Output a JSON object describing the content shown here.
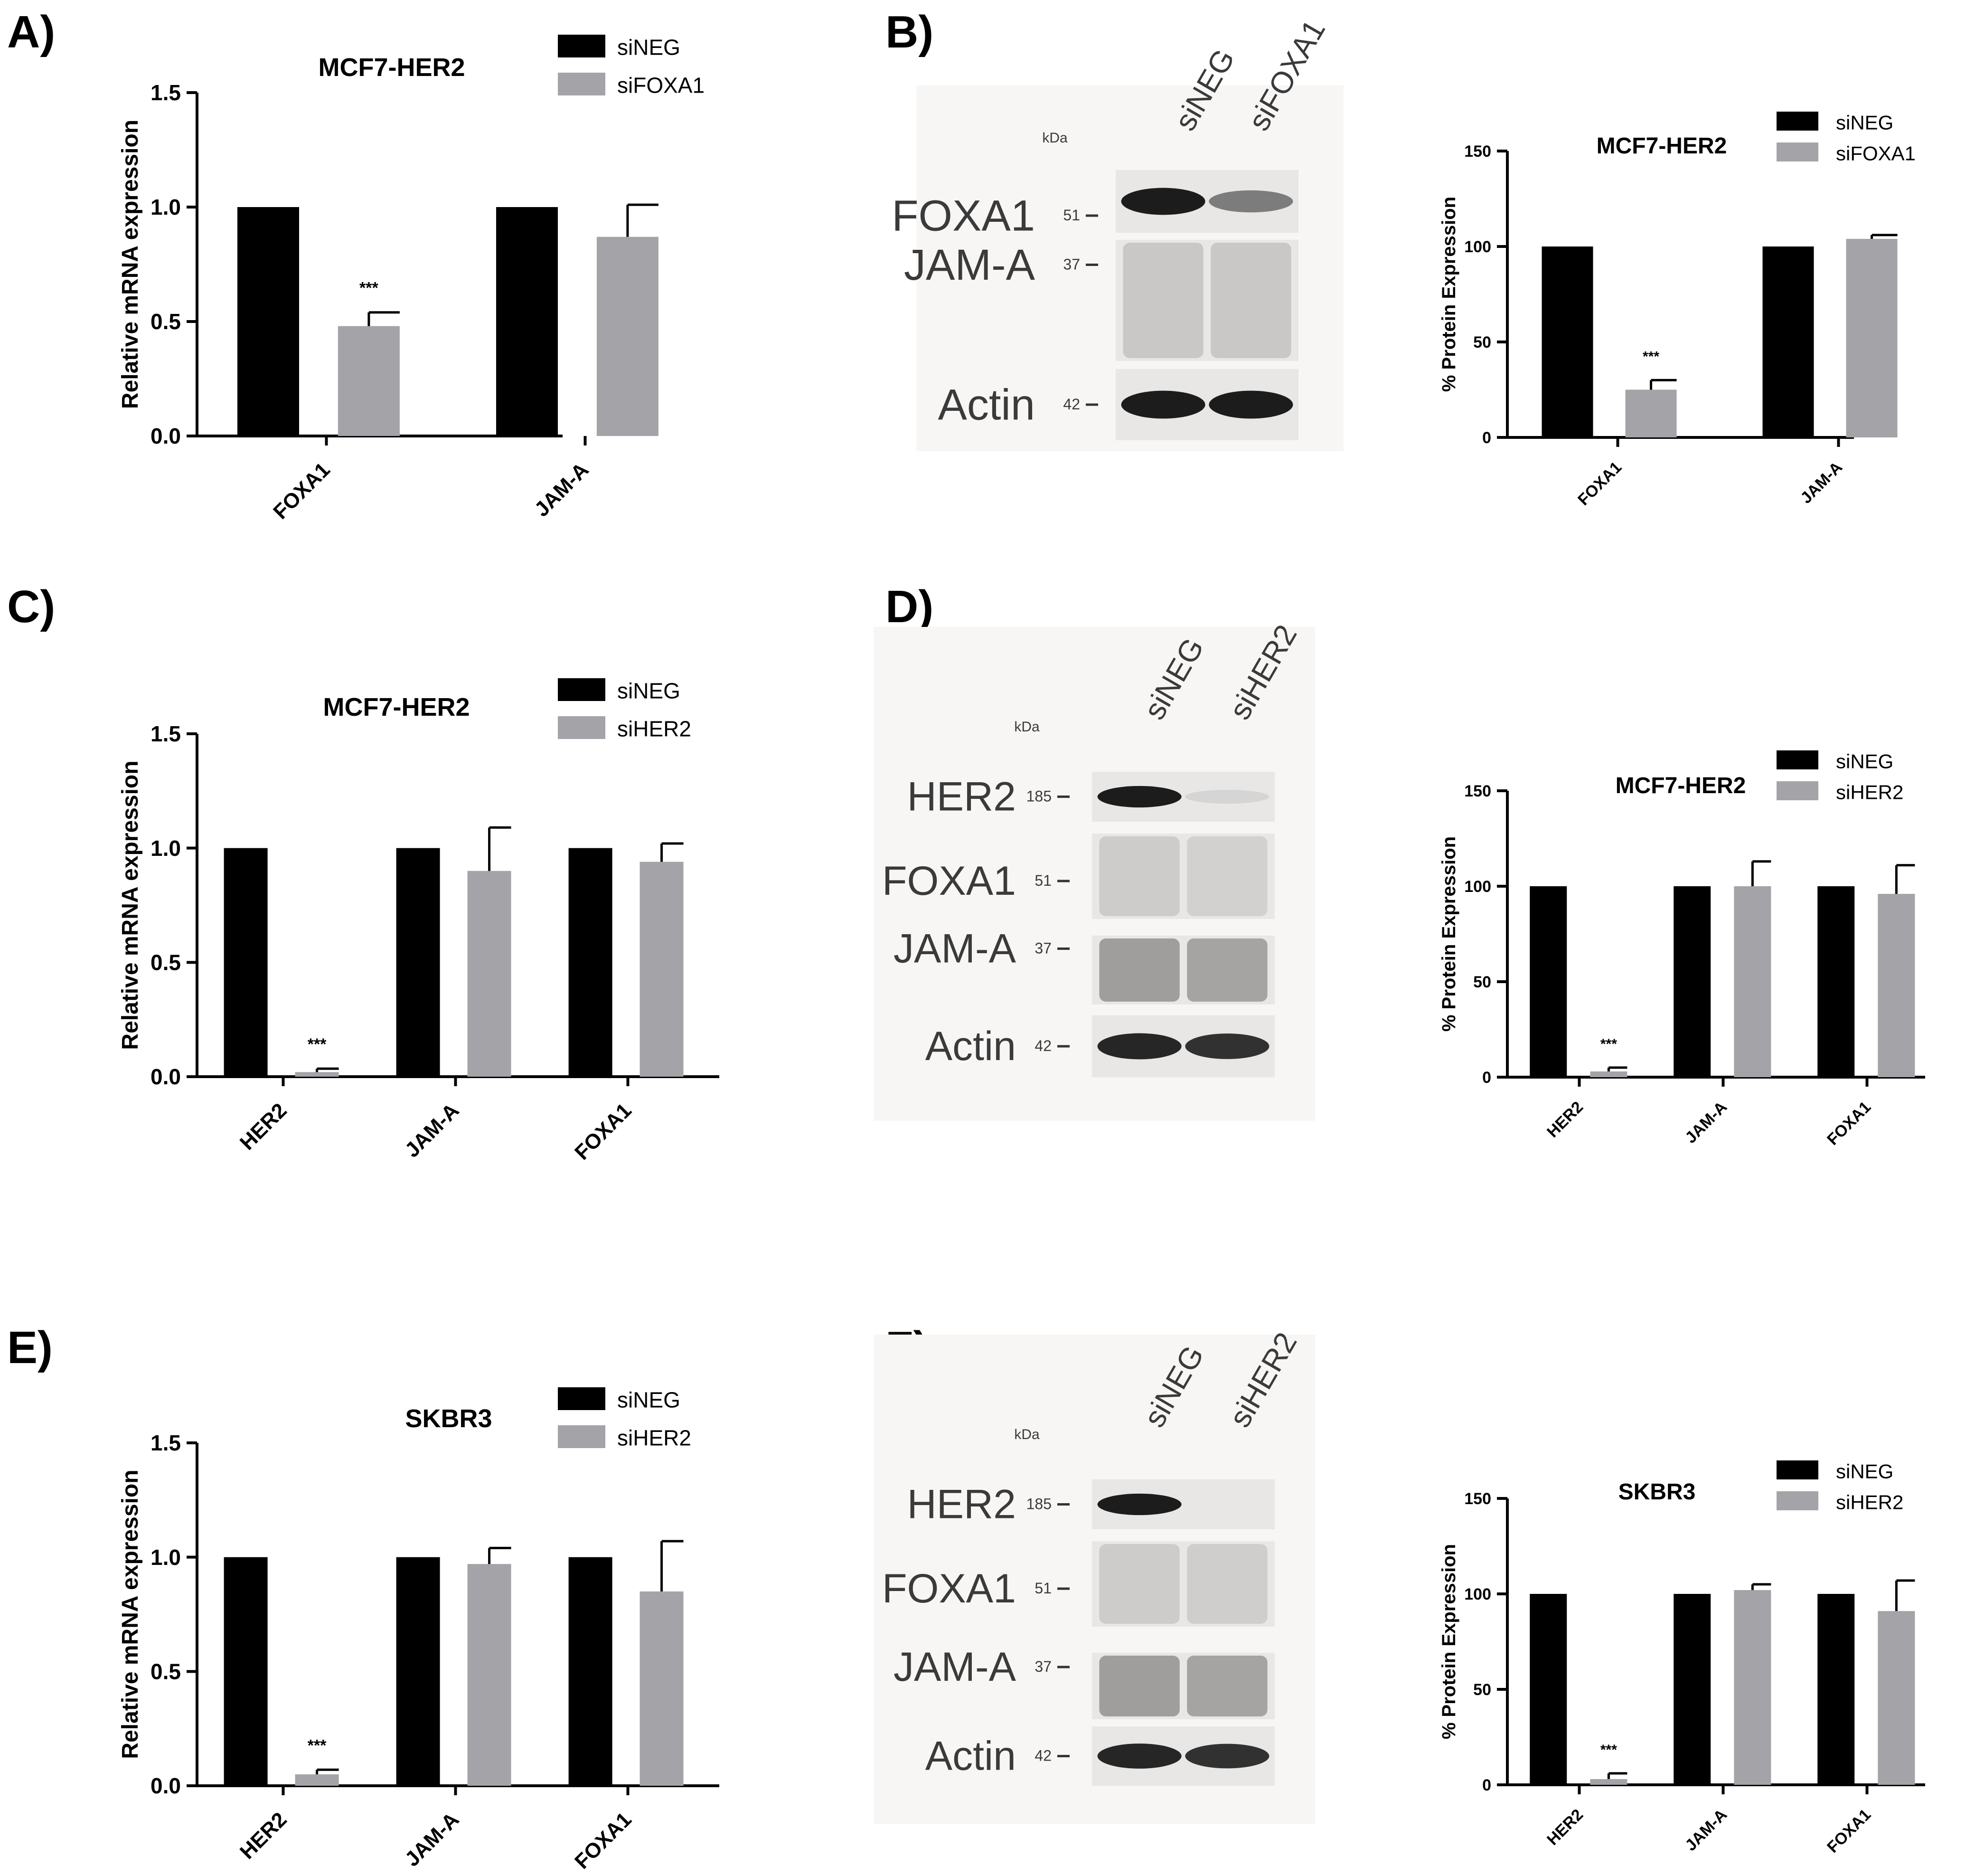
{
  "colors": {
    "siNEG": "#000000",
    "siKD": "#a3a3a8",
    "axis": "#000000",
    "blot_bg": "#f7f6f5"
  },
  "panels": {
    "A": {
      "letter": "A)"
    },
    "B": {
      "letter": "B)",
      "kda": "kDa",
      "lanes": [
        "siNEG",
        "siFOXA1"
      ],
      "bands": [
        {
          "label": "FOXA1",
          "mw": "51"
        },
        {
          "label": "JAM-A",
          "mw": "37"
        },
        {
          "label": "Actin",
          "mw": "42"
        }
      ]
    },
    "C": {
      "letter": "C)"
    },
    "D": {
      "letter": "D)",
      "kda": "kDa",
      "lanes": [
        "siNEG",
        "siHER2"
      ],
      "bands": [
        {
          "label": "HER2",
          "mw": "185"
        },
        {
          "label": "FOXA1",
          "mw": "51"
        },
        {
          "label": "JAM-A",
          "mw": "37"
        },
        {
          "label": "Actin",
          "mw": "42"
        }
      ]
    },
    "E": {
      "letter": "E)"
    },
    "F": {
      "letter": "F)",
      "kda": "kDa",
      "lanes": [
        "siNEG",
        "siHER2"
      ],
      "bands": [
        {
          "label": "HER2",
          "mw": "185"
        },
        {
          "label": "FOXA1",
          "mw": "51"
        },
        {
          "label": "JAM-A",
          "mw": "37"
        },
        {
          "label": "Actin",
          "mw": "42"
        }
      ]
    }
  },
  "chart_data": [
    {
      "id": "A",
      "type": "bar",
      "title": "MCF7-HER2",
      "ylabel": "Relative mRNA expression",
      "categories": [
        "FOXA1",
        "JAM-A"
      ],
      "ylim": [
        0,
        1.5
      ],
      "yticks": [
        "0.0",
        "0.5",
        "1.0",
        "1.5"
      ],
      "legend": "top-right",
      "series": [
        {
          "name": "siNEG",
          "values": [
            1.0,
            1.0
          ],
          "errors": [
            0,
            0
          ]
        },
        {
          "name": "siFOXA1",
          "values": [
            0.48,
            0.87
          ],
          "errors": [
            0.06,
            0.14
          ]
        }
      ],
      "annotations": [
        {
          "category": "FOXA1",
          "series": "siFOXA1",
          "text": "***"
        }
      ]
    },
    {
      "id": "B",
      "type": "bar",
      "title": "MCF7-HER2",
      "ylabel": "% Protein Expression",
      "categories": [
        "FOXA1",
        "JAM-A"
      ],
      "ylim": [
        0,
        150
      ],
      "yticks": [
        "0",
        "50",
        "100",
        "150"
      ],
      "legend": "top-right",
      "series": [
        {
          "name": "siNEG",
          "values": [
            100,
            100
          ],
          "errors": [
            0,
            0
          ]
        },
        {
          "name": "siFOXA1",
          "values": [
            25,
            104
          ],
          "errors": [
            5,
            2
          ]
        }
      ],
      "annotations": [
        {
          "category": "FOXA1",
          "series": "siFOXA1",
          "text": "***"
        }
      ]
    },
    {
      "id": "C",
      "type": "bar",
      "title": "MCF7-HER2",
      "ylabel": "Relative mRNA expression",
      "categories": [
        "HER2",
        "JAM-A",
        "FOXA1"
      ],
      "ylim": [
        0,
        1.5
      ],
      "yticks": [
        "0.0",
        "0.5",
        "1.0",
        "1.5"
      ],
      "legend": "top-right",
      "series": [
        {
          "name": "siNEG",
          "values": [
            1.0,
            1.0,
            1.0
          ],
          "errors": [
            0,
            0,
            0
          ]
        },
        {
          "name": "siHER2",
          "values": [
            0.02,
            0.9,
            0.94
          ],
          "errors": [
            0.015,
            0.19,
            0.08
          ]
        }
      ],
      "annotations": [
        {
          "category": "HER2",
          "series": "siHER2",
          "text": "***"
        }
      ]
    },
    {
      "id": "D",
      "type": "bar",
      "title": "MCF7-HER2",
      "ylabel": "% Protein Expression",
      "categories": [
        "HER2",
        "JAM-A",
        "FOXA1"
      ],
      "ylim": [
        0,
        150
      ],
      "yticks": [
        "0",
        "50",
        "100",
        "150"
      ],
      "legend": "top-right",
      "series": [
        {
          "name": "siNEG",
          "values": [
            100,
            100,
            100
          ],
          "errors": [
            0,
            0,
            0
          ]
        },
        {
          "name": "siHER2",
          "values": [
            3,
            100,
            96
          ],
          "errors": [
            2,
            13,
            15
          ]
        }
      ],
      "annotations": [
        {
          "category": "HER2",
          "series": "siHER2",
          "text": "***"
        }
      ]
    },
    {
      "id": "E",
      "type": "bar",
      "title": "SKBR3",
      "ylabel": "Relative mRNA expression",
      "categories": [
        "HER2",
        "JAM-A",
        "FOXA1"
      ],
      "ylim": [
        0,
        1.5
      ],
      "yticks": [
        "0.0",
        "0.5",
        "1.0",
        "1.5"
      ],
      "legend": "top-right",
      "series": [
        {
          "name": "siNEG",
          "values": [
            1.0,
            1.0,
            1.0
          ],
          "errors": [
            0,
            0,
            0
          ]
        },
        {
          "name": "siHER2",
          "values": [
            0.05,
            0.97,
            0.85
          ],
          "errors": [
            0.02,
            0.07,
            0.22
          ]
        }
      ],
      "annotations": [
        {
          "category": "HER2",
          "series": "siHER2",
          "text": "***"
        }
      ]
    },
    {
      "id": "F",
      "type": "bar",
      "title": "SKBR3",
      "ylabel": "% Protein Expression",
      "categories": [
        "HER2",
        "JAM-A",
        "FOXA1"
      ],
      "ylim": [
        0,
        150
      ],
      "yticks": [
        "0",
        "50",
        "100",
        "150"
      ],
      "legend": "top-right",
      "series": [
        {
          "name": "siNEG",
          "values": [
            100,
            100,
            100
          ],
          "errors": [
            0,
            0,
            0
          ]
        },
        {
          "name": "siHER2",
          "values": [
            3,
            102,
            91
          ],
          "errors": [
            3,
            3,
            16
          ]
        }
      ],
      "annotations": [
        {
          "category": "HER2",
          "series": "siHER2",
          "text": "***"
        }
      ]
    }
  ]
}
